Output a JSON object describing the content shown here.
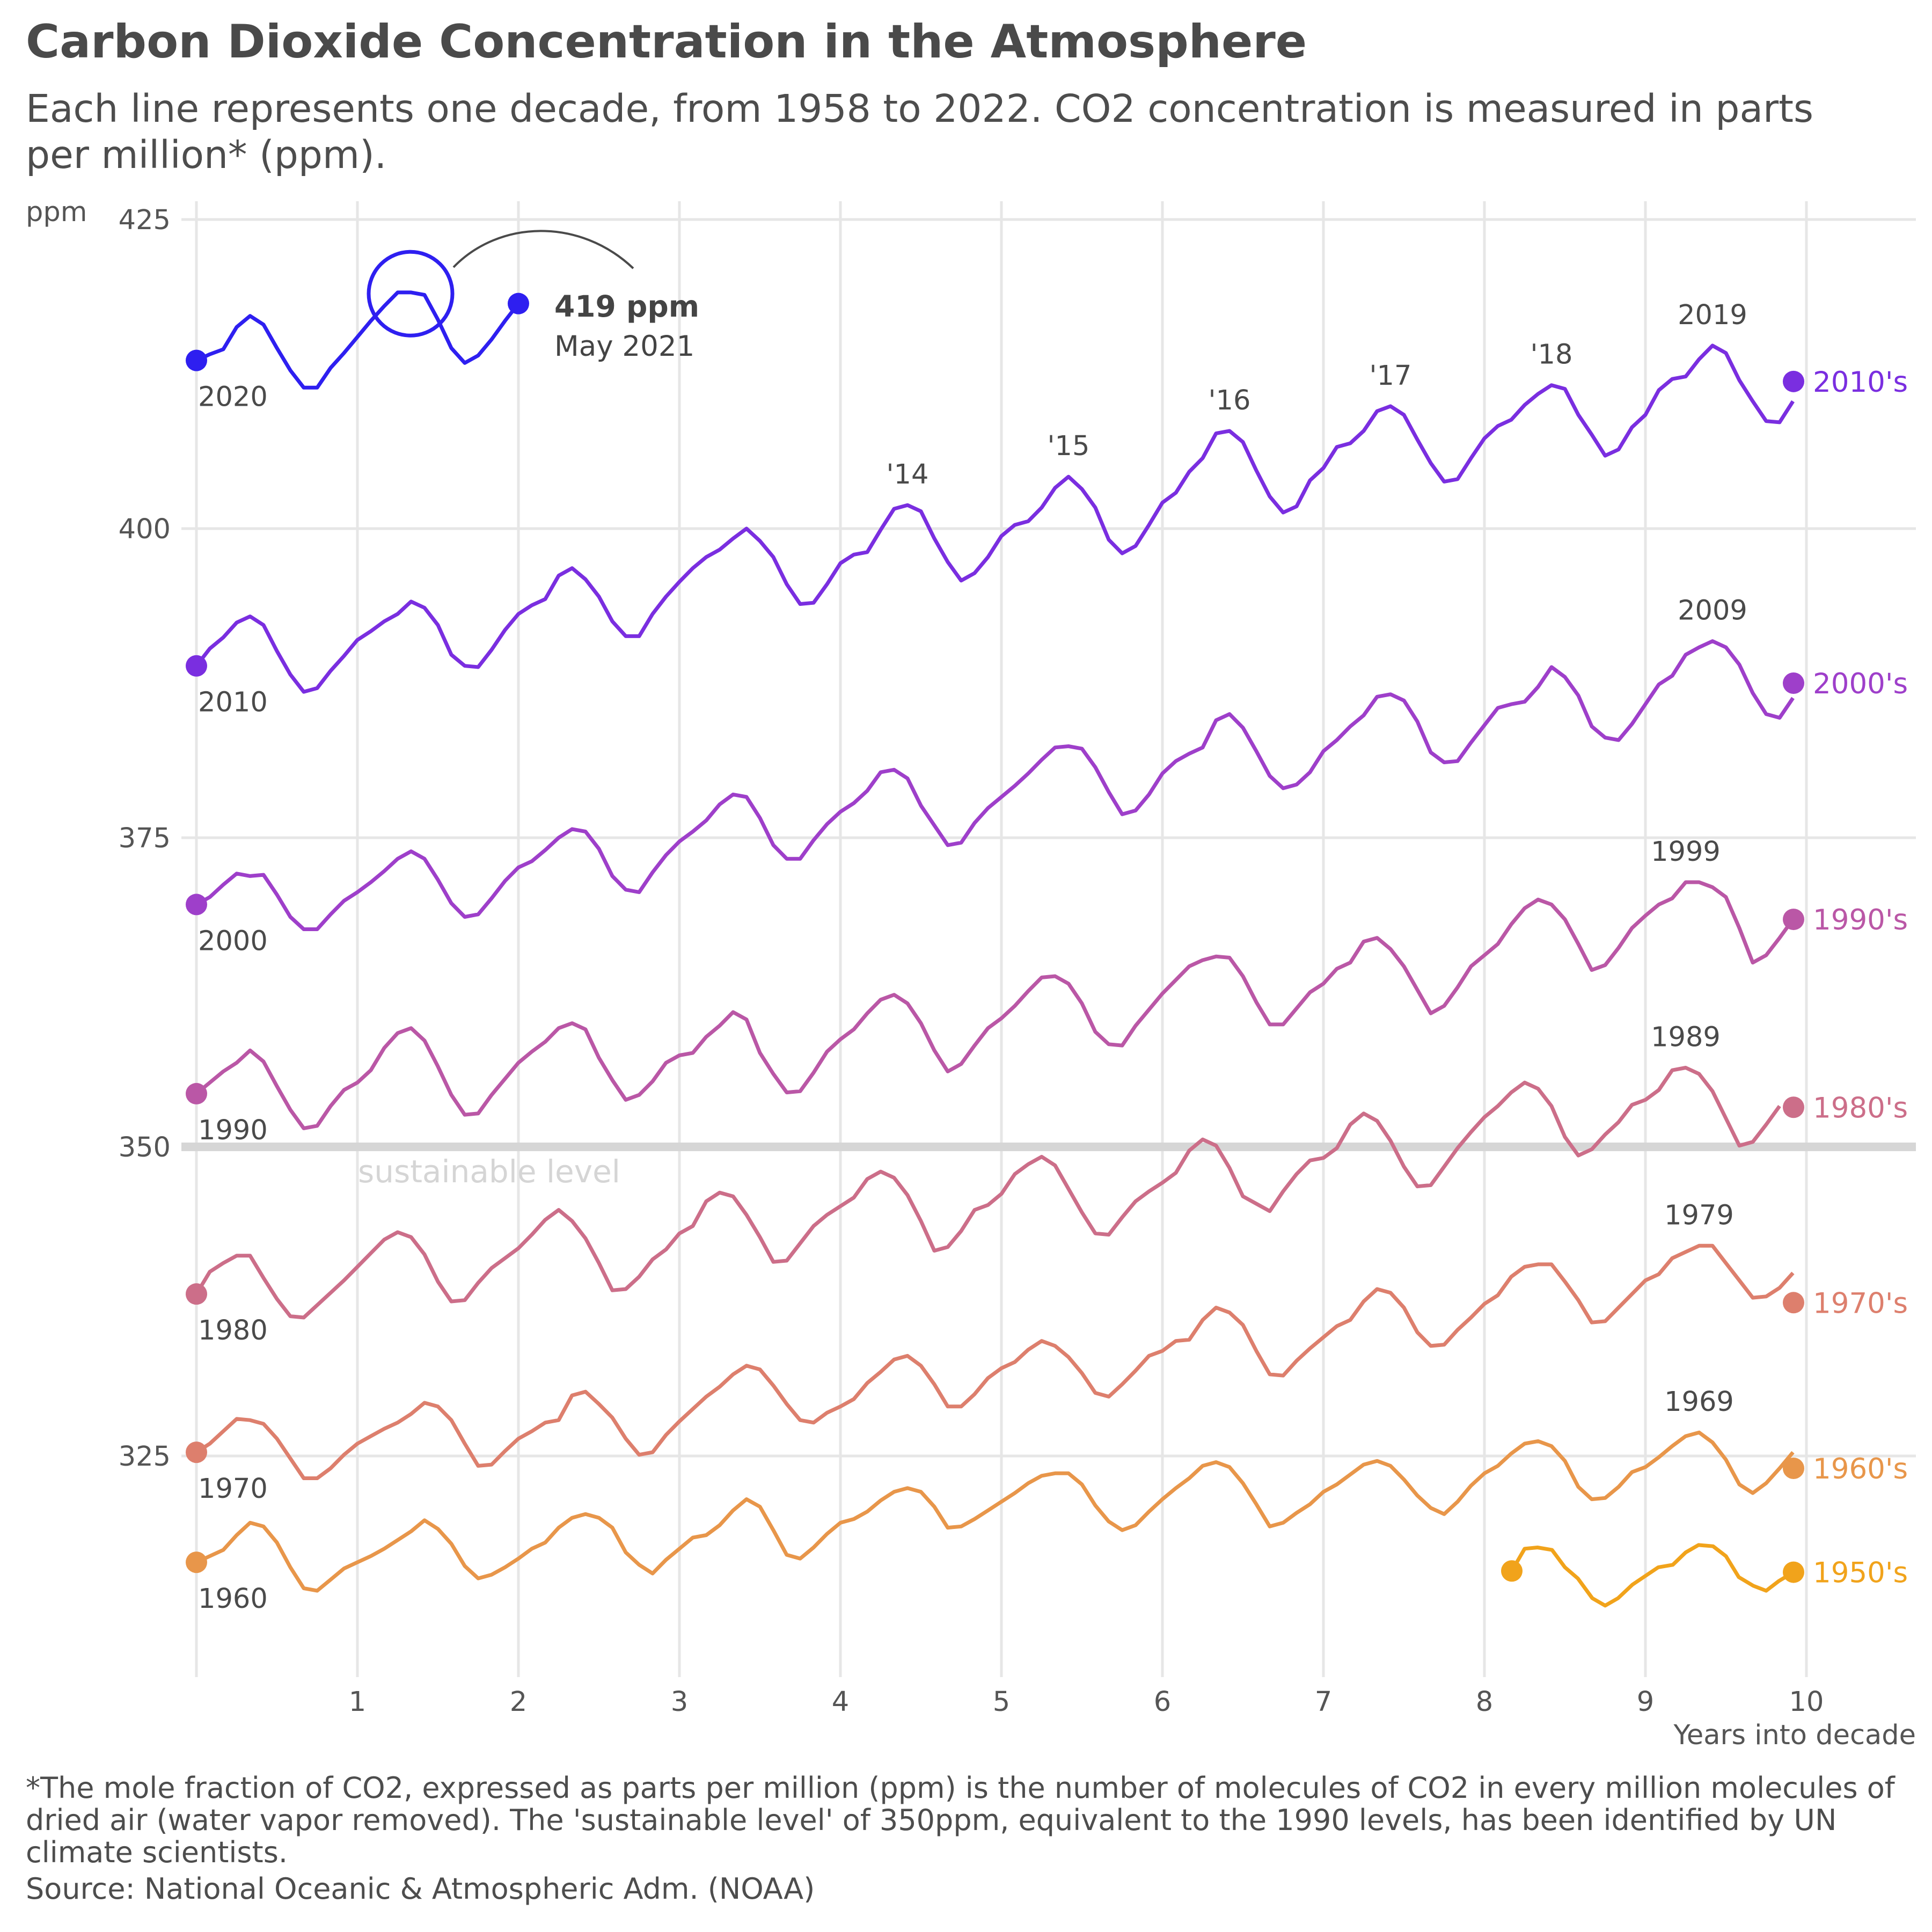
{
  "title": "Carbon Dioxide Concentration in the Atmosphere",
  "subtitle": "Each line represents one decade, from 1958 to 2022. CO2 concentration is measured in parts per million* (ppm).",
  "footnote": "*The mole fraction of CO2, expressed as parts per million (ppm) is the number of molecules of CO2 in every million molecules of dried air (water vapor removed). The 'sustainable level' of 350ppm, equivalent to the 1990 levels, has been identified by UN climate scientists.",
  "source": "Source: National Oceanic & Atmospheric Adm. (NOAA)",
  "chart_data": {
    "type": "line",
    "xlabel": "Years into decade",
    "ylabel": "ppm",
    "xlim": [
      0,
      10
    ],
    "ylim": [
      307,
      425
    ],
    "xticks": [
      "1",
      "2",
      "3",
      "4",
      "5",
      "6",
      "7",
      "8",
      "9",
      "10"
    ],
    "yticks": [
      "325",
      "350",
      "375",
      "400",
      "425"
    ],
    "reference_line": {
      "y": 350,
      "label": "sustainable level"
    },
    "annotation": {
      "value": "419 ppm",
      "date": "May 2021",
      "x": 1.33,
      "y": 419
    },
    "colors": {
      "1950's": "#f1a31b",
      "1960's": "#e8964a",
      "1970's": "#dd7f6d",
      "1980's": "#cc6e89",
      "1990's": "#ba57a6",
      "2000's": "#9e3fca",
      "2010's": "#7a2ee0",
      "2020's": "#2e1ff0"
    },
    "series": [
      {
        "name": "1950's",
        "start_label": "",
        "peak_label": "",
        "x": [
          8.17,
          8.25,
          8.33,
          8.42,
          8.5,
          8.58,
          8.67,
          8.75,
          8.83,
          8.92,
          9.0,
          9.08,
          9.17,
          9.25,
          9.33,
          9.42,
          9.5,
          9.58,
          9.67,
          9.75,
          9.83,
          9.92
        ],
        "values": [
          315.7,
          317.5,
          317.6,
          317.4,
          316.0,
          315.1,
          313.5,
          312.9,
          313.5,
          314.6,
          315.3,
          316.0,
          316.2,
          317.2,
          317.8,
          317.7,
          316.9,
          315.2,
          314.5,
          314.1,
          314.9,
          315.6
        ]
      },
      {
        "name": "1960's",
        "start_label": "1960",
        "peak_label": "1969",
        "values": [
          316.4,
          316.9,
          317.4,
          318.6,
          319.6,
          319.3,
          318.0,
          316.0,
          314.3,
          314.1,
          315.0,
          315.9,
          316.4,
          316.9,
          317.5,
          318.2,
          318.9,
          319.8,
          319.1,
          317.9,
          316.1,
          315.1,
          315.4,
          316.0,
          316.7,
          317.5,
          318.0,
          319.2,
          320.0,
          320.3,
          320.0,
          319.2,
          317.2,
          316.2,
          315.5,
          316.6,
          317.5,
          318.4,
          318.6,
          319.4,
          320.6,
          321.5,
          320.9,
          319.0,
          317.0,
          316.7,
          317.6,
          318.7,
          319.6,
          319.9,
          320.5,
          321.4,
          322.1,
          322.4,
          322.1,
          320.9,
          319.2,
          319.3,
          319.9,
          320.6,
          321.3,
          322.0,
          322.8,
          323.4,
          323.6,
          323.6,
          322.7,
          321.0,
          319.7,
          319.0,
          319.4,
          320.5,
          321.5,
          322.4,
          323.2,
          324.2,
          324.5,
          324.1,
          322.8,
          321.1,
          319.3,
          319.6,
          320.4,
          321.1,
          322.1,
          322.7,
          323.5,
          324.3,
          324.6,
          324.2,
          323.1,
          321.8,
          320.8,
          320.3,
          321.3,
          322.6,
          323.6,
          324.2,
          325.2,
          326.0,
          326.2,
          325.8,
          324.6,
          322.5,
          321.5,
          321.6,
          322.5,
          323.7,
          324.1,
          324.9,
          325.8,
          326.6,
          326.9,
          326.1,
          324.7,
          322.7,
          322.0,
          322.8,
          324.0,
          325.3
        ],
        "last_value": 324.0
      },
      {
        "name": "1970's",
        "start_label": "1970",
        "peak_label": "1979",
        "values": [
          325.3,
          326.0,
          327.0,
          328.0,
          327.9,
          327.6,
          326.4,
          324.8,
          323.2,
          323.2,
          324.0,
          325.1,
          326.0,
          326.6,
          327.2,
          327.7,
          328.4,
          329.3,
          329.0,
          327.9,
          326.0,
          324.2,
          324.3,
          325.4,
          326.4,
          327.0,
          327.7,
          327.9,
          329.9,
          330.2,
          329.2,
          328.1,
          326.4,
          325.1,
          325.3,
          326.7,
          327.8,
          328.8,
          329.8,
          330.6,
          331.6,
          332.3,
          332.0,
          330.7,
          329.2,
          327.9,
          327.7,
          328.5,
          329.0,
          329.6,
          330.9,
          331.8,
          332.8,
          333.1,
          332.3,
          330.8,
          329.0,
          329.0,
          330.0,
          331.3,
          332.1,
          332.6,
          333.6,
          334.3,
          333.9,
          333.0,
          331.7,
          330.1,
          329.8,
          330.8,
          331.9,
          333.1,
          333.5,
          334.3,
          334.4,
          336.0,
          337.0,
          336.6,
          335.6,
          333.5,
          331.6,
          331.5,
          332.7,
          333.7,
          334.6,
          335.5,
          336.0,
          337.5,
          338.5,
          338.2,
          337.0,
          335.0,
          333.9,
          334.0,
          335.2,
          336.2,
          337.3,
          338.0,
          339.5,
          340.3,
          340.5,
          340.5,
          339.1,
          337.6,
          335.8,
          335.9,
          337.0,
          338.1,
          339.2,
          339.7,
          341.0,
          341.5,
          342.0,
          342.0,
          340.6,
          339.2,
          337.8,
          337.9,
          338.6,
          339.8
        ],
        "last_value": 337.4
      },
      {
        "name": "1980's",
        "start_label": "1980",
        "peak_label": "1989",
        "values": [
          338.1,
          339.9,
          340.6,
          341.2,
          341.2,
          339.4,
          337.7,
          336.3,
          336.2,
          337.2,
          338.2,
          339.2,
          340.3,
          341.4,
          342.5,
          343.1,
          342.7,
          341.3,
          339.1,
          337.5,
          337.6,
          339.0,
          340.2,
          341.0,
          341.8,
          342.9,
          344.1,
          344.9,
          344.0,
          342.6,
          340.6,
          338.4,
          338.5,
          339.5,
          340.9,
          341.7,
          343.0,
          343.6,
          345.6,
          346.3,
          346.0,
          344.5,
          342.7,
          340.7,
          340.8,
          342.2,
          343.6,
          344.5,
          345.2,
          345.9,
          347.4,
          348.0,
          347.5,
          346.1,
          344.0,
          341.6,
          341.9,
          343.2,
          344.9,
          345.3,
          346.2,
          347.8,
          348.6,
          349.2,
          348.5,
          346.6,
          344.7,
          343.0,
          342.9,
          344.3,
          345.6,
          346.4,
          347.1,
          347.9,
          349.7,
          350.6,
          350.1,
          348.3,
          346.0,
          345.4,
          344.8,
          346.4,
          347.8,
          348.9,
          349.1,
          349.9,
          351.8,
          352.7,
          352.1,
          350.5,
          348.4,
          346.8,
          346.9,
          348.4,
          349.9,
          351.2,
          352.4,
          353.3,
          354.4,
          355.2,
          354.7,
          353.3,
          350.8,
          349.3,
          349.8,
          351.0,
          352.0,
          353.4,
          353.8,
          354.6,
          356.2,
          356.4,
          355.9,
          354.5,
          352.3,
          350.1,
          350.4,
          351.8,
          353.3
        ],
        "last_value": 353.2
      },
      {
        "name": "1990's",
        "start_label": "1990",
        "peak_label": "1999",
        "values": [
          354.3,
          355.2,
          356.1,
          356.8,
          357.8,
          356.9,
          354.9,
          353.0,
          351.5,
          351.7,
          353.3,
          354.6,
          355.2,
          356.2,
          358.0,
          359.2,
          359.6,
          358.6,
          356.5,
          354.2,
          352.6,
          352.7,
          354.2,
          355.5,
          356.8,
          357.7,
          358.5,
          359.6,
          360.0,
          359.5,
          357.2,
          355.4,
          353.8,
          354.2,
          355.3,
          356.8,
          357.4,
          357.6,
          358.9,
          359.8,
          360.9,
          360.3,
          357.6,
          355.9,
          354.4,
          354.5,
          356.0,
          357.7,
          358.7,
          359.5,
          360.8,
          361.9,
          362.3,
          361.6,
          360.0,
          357.8,
          356.1,
          356.7,
          358.2,
          359.6,
          360.4,
          361.4,
          362.6,
          363.7,
          363.8,
          363.2,
          361.6,
          359.3,
          358.3,
          358.2,
          359.8,
          361.1,
          362.4,
          363.5,
          364.6,
          365.1,
          365.4,
          365.3,
          363.8,
          361.7,
          359.9,
          359.9,
          361.2,
          362.5,
          363.2,
          364.4,
          364.9,
          366.6,
          366.9,
          366.0,
          364.6,
          362.7,
          360.8,
          361.4,
          362.9,
          364.6,
          365.5,
          366.4,
          368.0,
          369.3,
          370.0,
          369.6,
          368.4,
          366.4,
          364.3,
          364.7,
          366.1,
          367.7,
          368.7,
          369.6,
          370.1,
          371.4,
          371.4,
          371.0,
          370.2,
          367.7,
          364.9,
          365.5,
          366.9,
          368.4
        ],
        "last_value": 368.4
      },
      {
        "name": "2000's",
        "start_label": "2000",
        "peak_label": "2009",
        "values": [
          369.6,
          370.2,
          371.2,
          372.1,
          371.9,
          372.0,
          370.4,
          368.6,
          367.6,
          367.6,
          368.8,
          369.9,
          370.6,
          371.4,
          372.3,
          373.3,
          373.9,
          373.3,
          371.6,
          369.7,
          368.6,
          368.8,
          370.1,
          371.5,
          372.6,
          373.1,
          374.0,
          375.0,
          375.7,
          375.5,
          374.1,
          371.9,
          370.8,
          370.6,
          372.2,
          373.6,
          374.7,
          375.5,
          376.4,
          377.7,
          378.5,
          378.3,
          376.6,
          374.4,
          373.3,
          373.3,
          374.8,
          376.1,
          377.1,
          377.8,
          378.8,
          380.3,
          380.5,
          379.8,
          377.6,
          376.0,
          374.4,
          374.6,
          376.2,
          377.4,
          378.3,
          379.2,
          380.2,
          381.3,
          382.3,
          382.4,
          382.2,
          380.7,
          378.7,
          376.9,
          377.2,
          378.5,
          380.2,
          381.2,
          381.8,
          382.3,
          384.5,
          385.0,
          383.9,
          382.0,
          380.0,
          379.0,
          379.3,
          380.3,
          382.0,
          382.9,
          384.0,
          384.9,
          386.4,
          386.6,
          386.1,
          384.4,
          381.9,
          381.1,
          381.2,
          382.7,
          384.1,
          385.5,
          385.8,
          386.0,
          387.2,
          388.8,
          388.0,
          386.5,
          384.0,
          383.1,
          382.9,
          384.2,
          385.8,
          387.4,
          388.1,
          389.8,
          390.4,
          390.9,
          390.4,
          389.0,
          386.7,
          385.0,
          384.7,
          386.3
        ],
        "last_value": 387.5
      },
      {
        "name": "2010's",
        "start_label": "2010",
        "peak_label": "2019",
        "year_labels": [
          {
            "year": 4,
            "label": "'14"
          },
          {
            "year": 5,
            "label": "'15"
          },
          {
            "year": 6,
            "label": "'16"
          },
          {
            "year": 7,
            "label": "'17"
          },
          {
            "year": 8,
            "label": "'18"
          }
        ],
        "values": [
          388.9,
          390.3,
          391.2,
          392.4,
          392.9,
          392.2,
          390.1,
          388.2,
          386.8,
          387.1,
          388.5,
          389.7,
          391.0,
          391.7,
          392.5,
          393.1,
          394.1,
          393.6,
          392.2,
          389.8,
          388.9,
          388.8,
          390.2,
          391.8,
          393.1,
          393.8,
          394.3,
          396.2,
          396.8,
          395.9,
          394.5,
          392.5,
          391.3,
          391.3,
          393.1,
          394.5,
          395.7,
          396.8,
          397.7,
          398.3,
          399.2,
          400.0,
          399.0,
          397.7,
          395.5,
          393.9,
          394.0,
          395.5,
          397.2,
          397.9,
          398.1,
          399.9,
          401.6,
          401.9,
          401.4,
          399.2,
          397.3,
          395.8,
          396.4,
          397.7,
          399.4,
          400.3,
          400.6,
          401.7,
          403.3,
          404.2,
          403.2,
          401.7,
          399.1,
          398.0,
          398.6,
          400.3,
          402.1,
          402.9,
          404.6,
          405.7,
          407.7,
          407.9,
          407.0,
          404.7,
          402.6,
          401.3,
          401.8,
          403.9,
          404.9,
          406.6,
          406.9,
          407.9,
          409.5,
          409.9,
          409.2,
          407.2,
          405.3,
          403.8,
          404.0,
          405.7,
          407.3,
          408.3,
          408.8,
          410.0,
          410.9,
          411.6,
          411.3,
          409.2,
          407.6,
          405.9,
          406.4,
          408.2,
          409.2,
          411.2,
          412.1,
          412.3,
          413.7,
          414.8,
          414.2,
          412.0,
          410.3,
          408.7,
          408.6,
          410.3
        ],
        "last_value": 411.9
      },
      {
        "name": "2020's",
        "start_label": "2020",
        "peak_label": "",
        "values": [
          413.6,
          414.1,
          414.5,
          416.3,
          417.2,
          416.5,
          414.6,
          412.8,
          411.4,
          411.4,
          413.0,
          414.2,
          415.5,
          416.8,
          418.0,
          419.1,
          419.1,
          418.9,
          416.9,
          414.6,
          413.4,
          414.0,
          415.3,
          416.8,
          418.2
        ]
      }
    ]
  }
}
